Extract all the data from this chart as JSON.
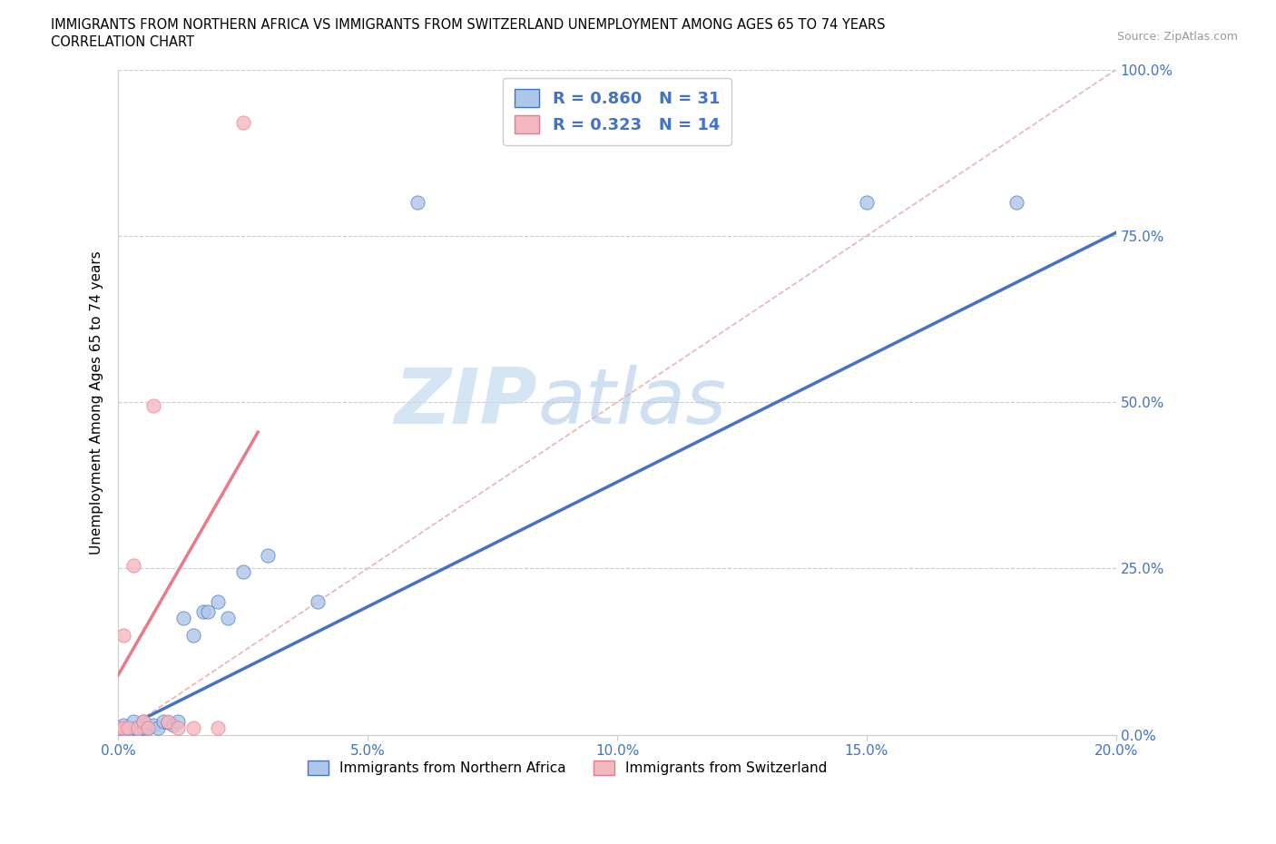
{
  "title_line1": "IMMIGRANTS FROM NORTHERN AFRICA VS IMMIGRANTS FROM SWITZERLAND UNEMPLOYMENT AMONG AGES 65 TO 74 YEARS",
  "title_line2": "CORRELATION CHART",
  "source": "Source: ZipAtlas.com",
  "ylabel": "Unemployment Among Ages 65 to 74 years",
  "series1_label": "Immigrants from Northern Africa",
  "series2_label": "Immigrants from Switzerland",
  "series1_R": 0.86,
  "series1_N": 31,
  "series2_R": 0.323,
  "series2_N": 14,
  "series1_color": "#aec6e8",
  "series2_color": "#f4b8c1",
  "series1_line_color": "#4472c4",
  "series2_line_color": "#e87a8a",
  "diagonal_color": "#e8b4b8",
  "watermark_color": "#ddeaf7",
  "xlim": [
    0.0,
    0.2
  ],
  "ylim": [
    0.0,
    1.0
  ],
  "xtick_vals": [
    0.0,
    0.05,
    0.1,
    0.15,
    0.2
  ],
  "xticklabels": [
    "0.0%",
    "5.0%",
    "10.0%",
    "15.0%",
    "20.0%"
  ],
  "ytick_vals": [
    0.0,
    0.25,
    0.5,
    0.75,
    1.0
  ],
  "yticklabels": [
    "0.0%",
    "25.0%",
    "50.0%",
    "75.0%",
    "100.0%"
  ],
  "s1_x": [
    0.0,
    0.0,
    0.001,
    0.001,
    0.001,
    0.002,
    0.002,
    0.003,
    0.003,
    0.004,
    0.005,
    0.005,
    0.006,
    0.007,
    0.008,
    0.009,
    0.01,
    0.011,
    0.012,
    0.013,
    0.015,
    0.017,
    0.018,
    0.02,
    0.022,
    0.025,
    0.03,
    0.04,
    0.06,
    0.15,
    0.18
  ],
  "s1_y": [
    0.005,
    0.01,
    0.005,
    0.008,
    0.015,
    0.005,
    0.01,
    0.01,
    0.02,
    0.008,
    0.01,
    0.02,
    0.01,
    0.015,
    0.01,
    0.02,
    0.018,
    0.015,
    0.02,
    0.175,
    0.15,
    0.185,
    0.185,
    0.2,
    0.175,
    0.245,
    0.27,
    0.2,
    0.8,
    0.8,
    0.8
  ],
  "s2_x": [
    0.0,
    0.001,
    0.001,
    0.002,
    0.003,
    0.004,
    0.005,
    0.006,
    0.007,
    0.01,
    0.012,
    0.015,
    0.02,
    0.025
  ],
  "s2_y": [
    0.01,
    0.01,
    0.15,
    0.01,
    0.255,
    0.01,
    0.02,
    0.01,
    0.495,
    0.02,
    0.01,
    0.01,
    0.01,
    0.92
  ],
  "s1_line_x": [
    0.0,
    0.2
  ],
  "s1_line_y": [
    0.005,
    0.755
  ],
  "s2_line_x": [
    0.0,
    0.028
  ],
  "s2_line_y": [
    0.09,
    0.455
  ]
}
